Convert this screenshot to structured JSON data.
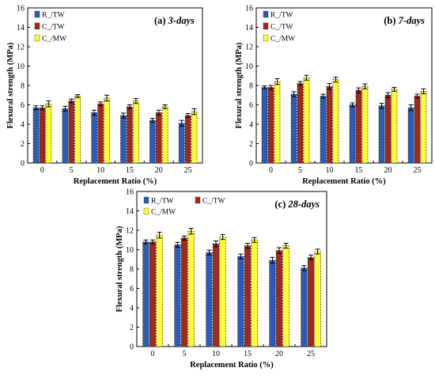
{
  "chart_data": [
    {
      "type": "bar",
      "title": "(a) 3-days",
      "xlabel": "Replacement Ratio (%)",
      "ylabel": "Flexural strength (MPa)",
      "ylim": [
        0,
        16
      ],
      "yticks": [
        "0",
        "2",
        "4",
        "6",
        "8",
        "10",
        "12",
        "14",
        "16"
      ],
      "categories": [
        "0",
        "5",
        "10",
        "15",
        "20",
        "25"
      ],
      "legend_position": "top-left",
      "series": [
        {
          "name": "R_/TW",
          "color": "#2a5cb8",
          "values": [
            5.7,
            5.6,
            5.2,
            4.9,
            4.4,
            4.1
          ],
          "errors": [
            0.2,
            0.25,
            0.25,
            0.25,
            0.2,
            0.3
          ]
        },
        {
          "name": "C_/TW",
          "color": "#a02a18",
          "values": [
            5.7,
            6.4,
            6.1,
            5.8,
            5.2,
            4.9
          ],
          "errors": [
            0.2,
            0.2,
            0.2,
            0.2,
            0.25,
            0.2
          ]
        },
        {
          "name": "C_/MW",
          "color": "#ffff33",
          "values": [
            6.1,
            6.9,
            6.7,
            6.4,
            5.8,
            5.3
          ],
          "errors": [
            0.3,
            0.15,
            0.3,
            0.25,
            0.2,
            0.3
          ]
        }
      ]
    },
    {
      "type": "bar",
      "title": "(b) 7-days",
      "xlabel": "Replacement Ratio (%)",
      "ylabel": "Flexural strength (MPa)",
      "ylim": [
        0,
        16
      ],
      "yticks": [
        "0",
        "2",
        "4",
        "6",
        "8",
        "10",
        "12",
        "14",
        "16"
      ],
      "categories": [
        "0",
        "5",
        "10",
        "15",
        "20",
        "25"
      ],
      "legend_position": "top-left",
      "series": [
        {
          "name": "R_/TW",
          "color": "#2a5cb8",
          "values": [
            7.8,
            7.1,
            6.9,
            6.0,
            5.9,
            5.7
          ],
          "errors": [
            0.15,
            0.25,
            0.2,
            0.2,
            0.25,
            0.3
          ]
        },
        {
          "name": "C_/TW",
          "color": "#a02a18",
          "values": [
            7.8,
            8.2,
            7.9,
            7.5,
            7.0,
            6.9
          ],
          "errors": [
            0.2,
            0.2,
            0.3,
            0.25,
            0.25,
            0.2
          ]
        },
        {
          "name": "C_/MW",
          "color": "#ffff33",
          "values": [
            8.4,
            8.8,
            8.6,
            7.9,
            7.6,
            7.4
          ],
          "errors": [
            0.3,
            0.25,
            0.25,
            0.25,
            0.2,
            0.25
          ]
        }
      ]
    },
    {
      "type": "bar",
      "title": "(c) 28-days",
      "xlabel": "Replacement Ratio (%)",
      "ylabel": "Flexural strength (MPa)",
      "ylim": [
        0,
        16
      ],
      "yticks": [
        "0",
        "2",
        "4",
        "6",
        "8",
        "10",
        "12",
        "14",
        "16"
      ],
      "categories": [
        "0",
        "5",
        "10",
        "15",
        "20",
        "25"
      ],
      "legend_position": "top-left",
      "series": [
        {
          "name": "R_/TW",
          "color": "#2a5cb8",
          "values": [
            10.8,
            10.5,
            9.7,
            9.3,
            8.9,
            8.1
          ],
          "errors": [
            0.2,
            0.25,
            0.25,
            0.25,
            0.3,
            0.25
          ]
        },
        {
          "name": "C_/TW",
          "color": "#a02a18",
          "values": [
            10.8,
            11.2,
            10.6,
            10.4,
            9.9,
            9.2
          ],
          "errors": [
            0.2,
            0.2,
            0.3,
            0.25,
            0.3,
            0.25
          ]
        },
        {
          "name": "C_/MW",
          "color": "#ffff33",
          "values": [
            11.5,
            11.9,
            11.3,
            11.0,
            10.4,
            9.8
          ],
          "errors": [
            0.3,
            0.3,
            0.25,
            0.25,
            0.25,
            0.25
          ]
        }
      ]
    }
  ]
}
